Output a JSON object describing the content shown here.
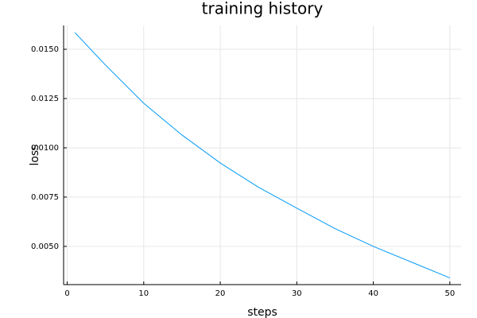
{
  "chart_data": {
    "type": "line",
    "title": "training history",
    "x_label": "steps",
    "y_label": "loss",
    "x": [
      1,
      5,
      10,
      15,
      20,
      25,
      30,
      35,
      40,
      45,
      50
    ],
    "series": [
      {
        "color": "#009af9",
        "values": [
          0.01585,
          0.0142,
          0.01226,
          0.01065,
          0.00923,
          0.008,
          0.00694,
          0.0059,
          0.005,
          0.0042,
          0.0034
        ]
      }
    ],
    "xlim": [
      -0.47,
      51.47
    ],
    "xticks": [
      0,
      10,
      20,
      30,
      40,
      50
    ],
    "ylim": [
      0.00306,
      0.01621
    ],
    "yticks": [
      {
        "value": 0.005,
        "label": "0.0050"
      },
      {
        "value": 0.0075,
        "label": "0.0075"
      },
      {
        "value": 0.01,
        "label": "0.0100"
      },
      {
        "value": 0.0125,
        "label": "0.0125"
      },
      {
        "value": 0.015,
        "label": "0.0150"
      }
    ],
    "grid": true
  }
}
